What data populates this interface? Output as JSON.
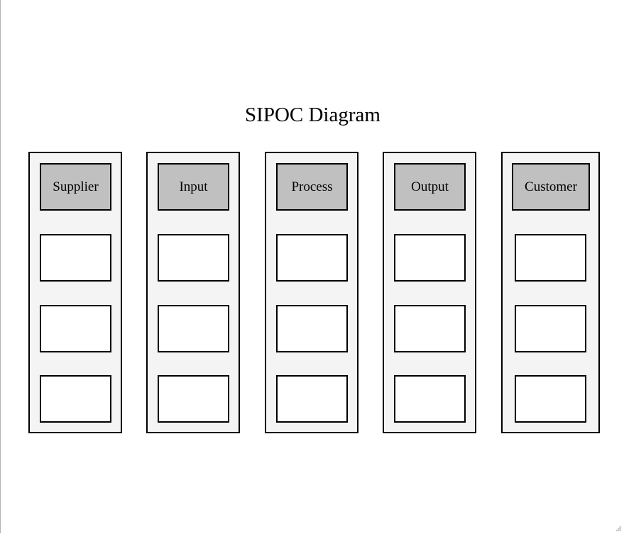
{
  "diagram": {
    "title": "SIPOC Diagram",
    "columns": [
      {
        "label": "Supplier",
        "cells": [
          "",
          "",
          ""
        ]
      },
      {
        "label": "Input",
        "cells": [
          "",
          "",
          ""
        ]
      },
      {
        "label": "Process",
        "cells": [
          "",
          "",
          ""
        ]
      },
      {
        "label": "Output",
        "cells": [
          "",
          "",
          ""
        ]
      },
      {
        "label": "Customer",
        "cells": [
          "",
          "",
          ""
        ]
      }
    ]
  },
  "colors": {
    "column_fill": "#f4f4f4",
    "header_fill": "#c0c0c0",
    "cell_fill": "#ffffff",
    "border": "#000000"
  },
  "icons": {
    "resize_grip": "resize-grip-icon"
  }
}
